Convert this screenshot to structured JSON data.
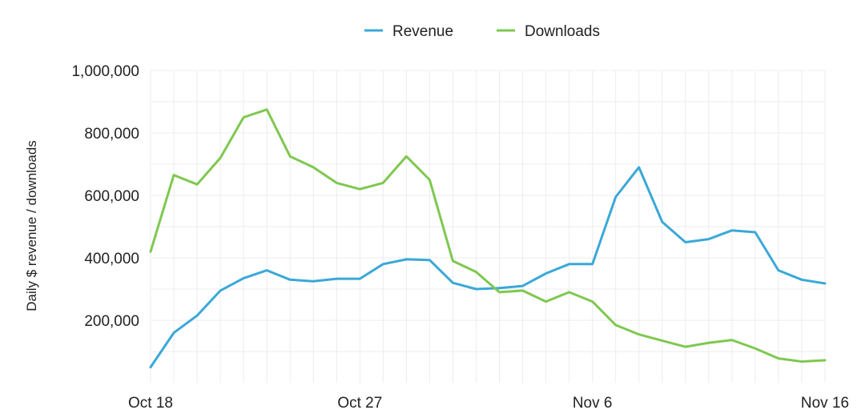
{
  "chart_data": {
    "type": "line",
    "title": "",
    "xlabel": "",
    "ylabel": "Daily $ revenue / downloads",
    "ylim": [
      0,
      1000000
    ],
    "x_start": "2023-10-18",
    "x_end": "2023-11-16",
    "x_ticks": [
      "Oct 18",
      "Oct 27",
      "Nov 6",
      "Nov 16"
    ],
    "x_tick_dates": [
      "2023-10-18",
      "2023-10-27",
      "2023-11-06",
      "2023-11-16"
    ],
    "y_ticks": [
      200000,
      400000,
      600000,
      800000,
      1000000
    ],
    "y_tick_labels": [
      "200,000",
      "400,000",
      "600,000",
      "800,000",
      "1,000,000"
    ],
    "grid": true,
    "legend_position": "top-center",
    "dates": [
      "2023-10-18",
      "2023-10-19",
      "2023-10-20",
      "2023-10-21",
      "2023-10-22",
      "2023-10-23",
      "2023-10-24",
      "2023-10-25",
      "2023-10-26",
      "2023-10-27",
      "2023-10-28",
      "2023-10-29",
      "2023-10-30",
      "2023-10-31",
      "2023-11-01",
      "2023-11-02",
      "2023-11-03",
      "2023-11-04",
      "2023-11-05",
      "2023-11-06",
      "2023-11-07",
      "2023-11-08",
      "2023-11-09",
      "2023-11-10",
      "2023-11-11",
      "2023-11-12",
      "2023-11-13",
      "2023-11-14",
      "2023-11-15",
      "2023-11-16"
    ],
    "series": [
      {
        "name": "Revenue",
        "color": "#3aa8d8",
        "values": [
          50000,
          160000,
          215000,
          295000,
          335000,
          360000,
          330000,
          325000,
          333000,
          333000,
          380000,
          395000,
          393000,
          320000,
          300000,
          303000,
          310000,
          350000,
          380000,
          380000,
          595000,
          690000,
          515000,
          450000,
          460000,
          488000,
          482000,
          360000,
          330000,
          318000
        ]
      },
      {
        "name": "Downloads",
        "color": "#7ec850",
        "values": [
          420000,
          665000,
          635000,
          720000,
          850000,
          875000,
          725000,
          690000,
          640000,
          620000,
          640000,
          725000,
          650000,
          390000,
          355000,
          290000,
          295000,
          260000,
          290000,
          260000,
          185000,
          155000,
          135000,
          115000,
          128000,
          137000,
          110000,
          78000,
          68000,
          72000
        ]
      }
    ]
  }
}
